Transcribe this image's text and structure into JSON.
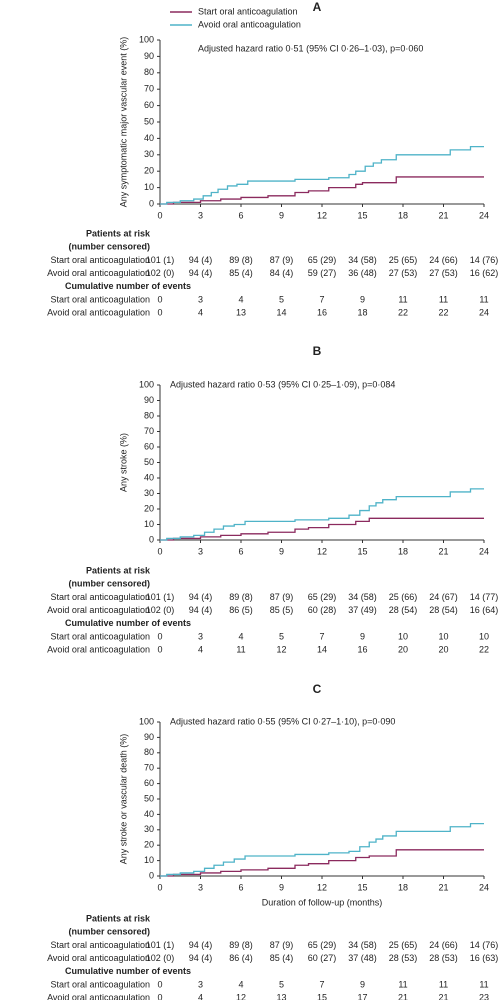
{
  "chart_data": [
    {
      "type": "line",
      "step": true,
      "panel": "A",
      "ylabel": "Any symptomatic major vascular event (%)",
      "annotation": "Adjusted hazard ratio 0·51 (95% CI 0·26–1·03), p=0·060",
      "xlim": [
        0,
        24
      ],
      "ylim": [
        0,
        100
      ],
      "xticks": [
        0,
        3,
        6,
        9,
        12,
        15,
        18,
        21,
        24
      ],
      "yticks": [
        0,
        10,
        20,
        30,
        40,
        50,
        60,
        70,
        80,
        90,
        100
      ],
      "series": [
        {
          "name": "Start oral anticoagulation",
          "color": "#8b2a5e",
          "x": [
            0,
            1,
            3,
            4.5,
            6,
            8,
            10,
            11,
            12.5,
            14.5,
            15,
            17.5,
            24
          ],
          "values": [
            0,
            1,
            2,
            3,
            4,
            5,
            7,
            8,
            10,
            12,
            13,
            16.5,
            16.5
          ]
        },
        {
          "name": "Avoid oral anticoagulation",
          "color": "#4fb3c8",
          "x": [
            0,
            0.5,
            1.5,
            2.5,
            3.2,
            3.8,
            4.3,
            5,
            5.7,
            6.5,
            10,
            12.5,
            14,
            14.5,
            15.2,
            15.8,
            16.4,
            17.5,
            21.5,
            23,
            24
          ],
          "values": [
            0,
            1,
            2,
            3,
            5,
            7,
            9,
            11,
            12,
            14,
            15,
            16,
            18,
            20,
            23,
            25,
            27,
            30,
            33,
            35,
            35
          ]
        }
      ],
      "at_risk": {
        "title": "Patients at risk",
        "subtitle": "(number censored)",
        "rows": [
          {
            "name": "Start oral anticoagulation",
            "values": [
              "101 (1)",
              "94 (4)",
              "89 (8)",
              "87 (9)",
              "65 (29)",
              "34 (58)",
              "25 (65)",
              "24 (66)",
              "14 (76)"
            ]
          },
          {
            "name": "Avoid oral anticoagulation",
            "values": [
              "102 (0)",
              "94 (4)",
              "85 (4)",
              "84 (4)",
              "59 (27)",
              "36 (48)",
              "27 (53)",
              "27 (53)",
              "16 (62)"
            ]
          }
        ]
      },
      "events": {
        "title": "Cumulative number of events",
        "rows": [
          {
            "name": "Start oral anticoagulation",
            "values": [
              0,
              3,
              4,
              5,
              7,
              9,
              11,
              11,
              11
            ]
          },
          {
            "name": "Avoid oral anticoagulation",
            "values": [
              0,
              4,
              13,
              14,
              16,
              18,
              22,
              22,
              24
            ]
          }
        ]
      }
    },
    {
      "type": "line",
      "step": true,
      "panel": "B",
      "ylabel": "Any stroke (%)",
      "annotation": "Adjusted hazard ratio 0·53 (95% CI 0·25–1·09), p=0·084",
      "xlim": [
        0,
        24
      ],
      "ylim": [
        0,
        100
      ],
      "xticks": [
        0,
        3,
        6,
        9,
        12,
        15,
        18,
        21,
        24
      ],
      "yticks": [
        0,
        10,
        20,
        30,
        40,
        50,
        60,
        70,
        80,
        90,
        100
      ],
      "series": [
        {
          "color": "#8b2a5e",
          "x": [
            0,
            1,
            3,
            4.5,
            6,
            8,
            10,
            11,
            12.5,
            14.5,
            15.5,
            24
          ],
          "values": [
            0,
            1,
            2,
            3,
            4,
            5,
            7,
            8,
            10,
            12,
            14,
            14
          ]
        },
        {
          "color": "#4fb3c8",
          "x": [
            0,
            0.5,
            1.5,
            2.5,
            3.3,
            4,
            4.7,
            5.5,
            6.3,
            10,
            12.5,
            14,
            14.8,
            15.5,
            16,
            16.5,
            17.5,
            21.5,
            23,
            24
          ],
          "values": [
            0,
            1,
            2,
            3,
            5,
            7,
            9,
            10,
            12,
            13,
            14,
            16,
            19,
            22,
            24,
            26,
            28,
            31,
            33,
            33
          ]
        }
      ],
      "at_risk": {
        "title": "Patients at risk",
        "subtitle": "(number censored)",
        "rows": [
          {
            "name": "Start oral anticoagulation",
            "values": [
              "101 (1)",
              "94 (4)",
              "89 (8)",
              "87 (9)",
              "65 (29)",
              "34 (58)",
              "25 (66)",
              "24 (67)",
              "14 (77)"
            ]
          },
          {
            "name": "Avoid oral anticoagulation",
            "values": [
              "102 (0)",
              "94 (4)",
              "86 (5)",
              "85 (5)",
              "60 (28)",
              "37 (49)",
              "28 (54)",
              "28 (54)",
              "16 (64)"
            ]
          }
        ]
      },
      "events": {
        "title": "Cumulative number of events",
        "rows": [
          {
            "name": "Start oral anticoagulation",
            "values": [
              0,
              3,
              4,
              5,
              7,
              9,
              10,
              10,
              10
            ]
          },
          {
            "name": "Avoid oral anticoagulation",
            "values": [
              0,
              4,
              11,
              12,
              14,
              16,
              20,
              20,
              22
            ]
          }
        ]
      }
    },
    {
      "type": "line",
      "step": true,
      "panel": "C",
      "ylabel": "Any stroke or vascular death (%)",
      "xlabel": "Duration of follow-up (months)",
      "annotation": "Adjusted hazard ratio 0·55 (95% CI 0·27–1·10), p=0·090",
      "xlim": [
        0,
        24
      ],
      "ylim": [
        0,
        100
      ],
      "xticks": [
        0,
        3,
        6,
        9,
        12,
        15,
        18,
        21,
        24
      ],
      "yticks": [
        0,
        10,
        20,
        30,
        40,
        50,
        60,
        70,
        80,
        90,
        100
      ],
      "series": [
        {
          "color": "#8b2a5e",
          "x": [
            0,
            1,
            3,
            4.5,
            6,
            8,
            10,
            11,
            12.5,
            14.5,
            15.5,
            17.5,
            24
          ],
          "values": [
            0,
            1,
            2,
            3,
            4,
            5,
            7,
            8,
            10,
            12,
            13,
            17,
            17
          ]
        },
        {
          "color": "#4fb3c8",
          "x": [
            0,
            0.5,
            1.5,
            2.5,
            3.3,
            4,
            4.7,
            5.5,
            6.3,
            10,
            12.5,
            14,
            14.8,
            15.5,
            16,
            16.5,
            17.5,
            21.5,
            23,
            24
          ],
          "values": [
            0,
            1,
            2,
            3,
            5,
            7,
            9,
            11,
            13,
            14,
            15,
            16,
            19,
            22,
            24,
            26,
            29,
            32,
            34,
            34
          ]
        }
      ],
      "at_risk": {
        "title": "Patients at risk",
        "subtitle": "(number censored)",
        "rows": [
          {
            "name": "Start oral anticoagulation",
            "values": [
              "101 (1)",
              "94 (4)",
              "89 (8)",
              "87 (9)",
              "65 (29)",
              "34 (58)",
              "25 (65)",
              "24 (66)",
              "14 (76)"
            ]
          },
          {
            "name": "Avoid oral anticoagulation",
            "values": [
              "102 (0)",
              "94 (4)",
              "86 (4)",
              "85 (4)",
              "60 (27)",
              "37 (48)",
              "28 (53)",
              "28 (53)",
              "16 (63)"
            ]
          }
        ]
      },
      "events": {
        "title": "Cumulative number of events",
        "rows": [
          {
            "name": "Start oral anticoagulation",
            "values": [
              0,
              3,
              4,
              5,
              7,
              9,
              11,
              11,
              11
            ]
          },
          {
            "name": "Avoid oral anticoagulation",
            "values": [
              0,
              4,
              12,
              13,
              15,
              17,
              21,
              21,
              23
            ]
          }
        ]
      }
    }
  ]
}
